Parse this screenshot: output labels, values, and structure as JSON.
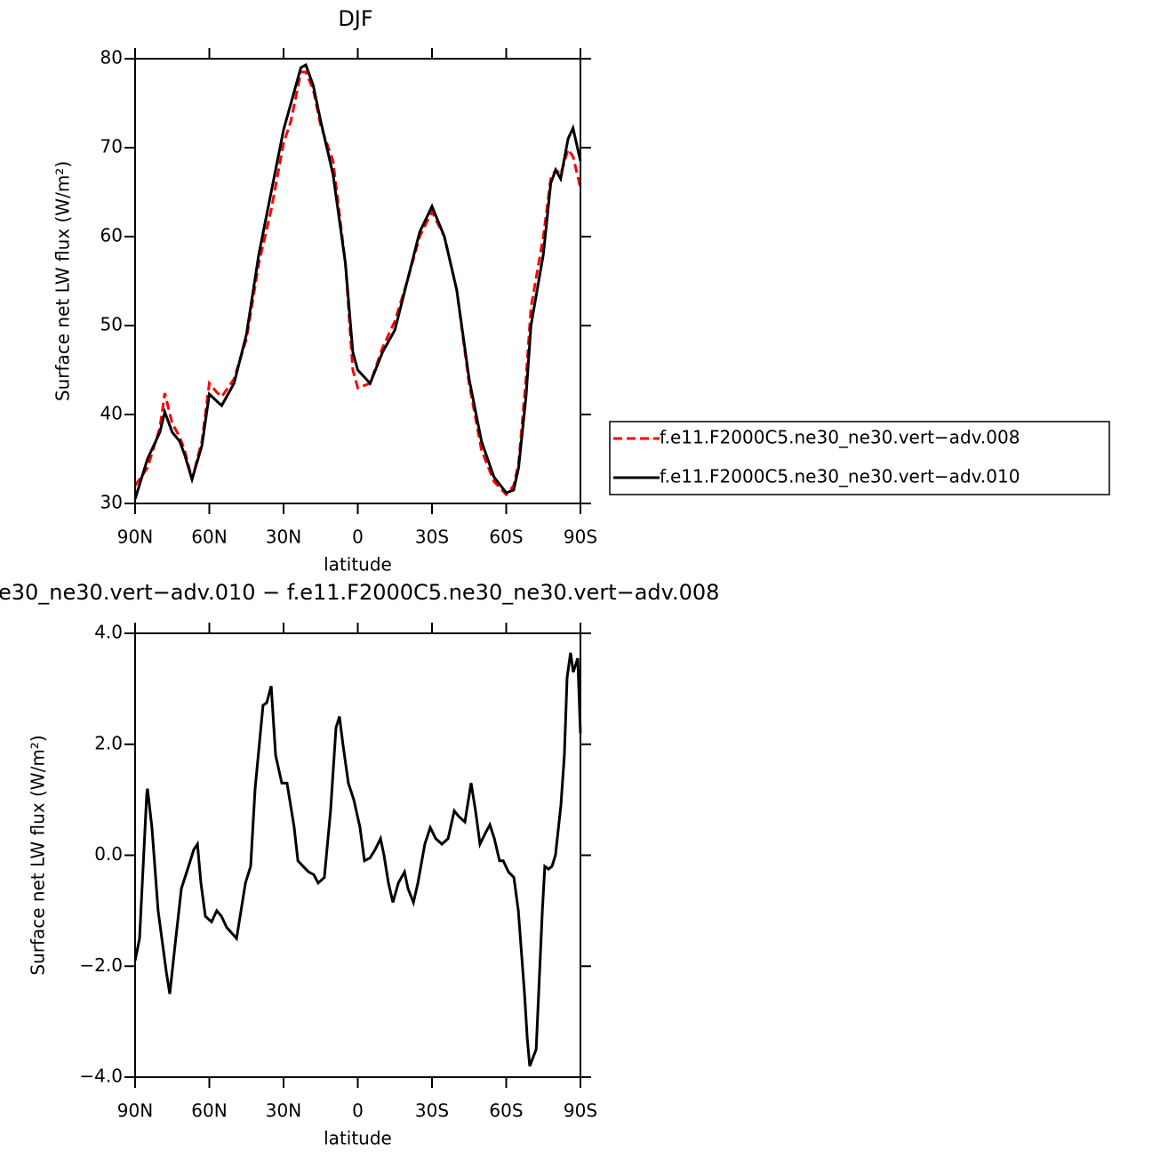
{
  "chart_data": [
    {
      "type": "line",
      "title": "DJF",
      "xlabel": "latitude",
      "ylabel": "Surface net LW flux (W/m²)",
      "x": [
        90,
        85,
        80,
        78,
        75,
        72,
        70,
        67,
        63,
        60,
        57,
        55,
        50,
        45,
        40,
        35,
        30,
        27,
        23,
        21,
        18,
        15,
        10,
        5,
        2,
        0,
        -5,
        -10,
        -15,
        -20,
        -25,
        -30,
        -35,
        -40,
        -45,
        -50,
        -55,
        -60,
        -63,
        -65,
        -68,
        -70,
        -75,
        -78,
        -80,
        -82,
        -85,
        -87,
        -90
      ],
      "series": [
        {
          "name": "f.e11.F2000C5.ne30_ne30.vert−adv.008",
          "color": "#ff0000",
          "dash": "dashed",
          "values": [
            32,
            34,
            38.5,
            42.4,
            39,
            37.5,
            36,
            32.7,
            37,
            43.5,
            42.5,
            42,
            44,
            48.5,
            57,
            63,
            70.5,
            73,
            78.5,
            78.5,
            76.5,
            72.5,
            68.5,
            57,
            45,
            43,
            43.5,
            47.5,
            50.5,
            55,
            60,
            62.8,
            60,
            54,
            43.5,
            36,
            32.5,
            31,
            32,
            34.5,
            44,
            52,
            60,
            66.5,
            67.5,
            67,
            69.8,
            69,
            65.5
          ]
        },
        {
          "name": "f.e11.F2000C5.ne30_ne30.vert−adv.010",
          "color": "#000000",
          "dash": "solid",
          "values": [
            30.5,
            35,
            38,
            40.3,
            38,
            37,
            35.5,
            32.7,
            36.5,
            42.3,
            41.5,
            41,
            43.5,
            49,
            58,
            65,
            72,
            75,
            79,
            79.3,
            77,
            73,
            67,
            57,
            47,
            45,
            43.5,
            47,
            49.5,
            55,
            60.5,
            63.4,
            60,
            54,
            44,
            37,
            33,
            31.2,
            31.5,
            34,
            42,
            50,
            58,
            66,
            67.5,
            66.5,
            71,
            72.2,
            68.5
          ]
        }
      ],
      "xlim": [
        90,
        -90
      ],
      "xticks": [
        {
          "value": 90,
          "label": "90N"
        },
        {
          "value": 60,
          "label": "60N"
        },
        {
          "value": 30,
          "label": "30N"
        },
        0,
        {
          "value": -30,
          "label": "30S"
        },
        {
          "value": -60,
          "label": "60S"
        },
        {
          "value": -90,
          "label": "90S"
        }
      ],
      "ylim": [
        30,
        80
      ],
      "yticks": [
        30,
        40,
        50,
        60,
        70,
        80
      ],
      "legend": "right"
    },
    {
      "type": "line",
      "title": "e30_ne30.vert−adv.010 − f.e11.F2000C5.ne30_ne30.vert−adv.008",
      "xlabel": "latitude",
      "ylabel": "Surface net LW flux (W/m²)",
      "x": [
        90,
        88.2,
        85.3,
        85,
        83.2,
        80.7,
        77.4,
        76,
        73.8,
        71.3,
        68.4,
        66.3,
        64.8,
        63.4,
        61.6,
        59.1,
        57,
        55.1,
        53,
        49,
        45.4,
        43.3,
        41.5,
        38.3,
        36.8,
        35,
        33.2,
        30.7,
        28.6,
        25.7,
        24.2,
        22.1,
        19.9,
        17.8,
        16,
        13.5,
        11,
        8.8,
        7.4,
        6,
        3.8,
        1.6,
        -0.9,
        -2.7,
        -4.9,
        -7,
        -9.2,
        -10.6,
        -12.4,
        -14.2,
        -16.4,
        -18.9,
        -20.3,
        -22.5,
        -24.3,
        -27.1,
        -29.3,
        -31.5,
        -34,
        -36.5,
        -39,
        -40.8,
        -43.3,
        -45.8,
        -47.6,
        -49.4,
        -51.6,
        -53.4,
        -55.2,
        -57.3,
        -58.8,
        -60.9,
        -63.1,
        -64.9,
        -67.4,
        -68.5,
        -69.5,
        -72.1,
        -74.6,
        -75.6,
        -77.1,
        -78.5,
        -79.9,
        -82.1,
        -83.5,
        -84.6,
        -86,
        -87.1,
        -88.9,
        -90
      ],
      "series": [
        {
          "color": "#000000",
          "dash": "solid",
          "values": [
            -1.9,
            -1.5,
            1.1,
            1.2,
            0.5,
            -1.0,
            -2.1,
            -2.5,
            -1.6,
            -0.6,
            -0.2,
            0.1,
            0.2,
            -0.5,
            -1.1,
            -1.2,
            -1.0,
            -1.1,
            -1.3,
            -1.5,
            -0.5,
            -0.2,
            1.2,
            2.7,
            2.75,
            3.05,
            1.8,
            1.3,
            1.3,
            0.5,
            -0.1,
            -0.2,
            -0.3,
            -0.35,
            -0.5,
            -0.4,
            0.8,
            2.3,
            2.5,
            2.0,
            1.3,
            1.0,
            0.5,
            -0.1,
            -0.05,
            0.1,
            0.3,
            0.0,
            -0.5,
            -0.85,
            -0.5,
            -0.3,
            -0.6,
            -0.85,
            -0.5,
            0.2,
            0.5,
            0.3,
            0.2,
            0.3,
            0.8,
            0.7,
            0.6,
            1.3,
            0.8,
            0.2,
            0.4,
            0.55,
            0.3,
            -0.1,
            -0.1,
            -0.3,
            -0.4,
            -1.0,
            -2.5,
            -3.3,
            -3.8,
            -3.5,
            -1.0,
            -0.2,
            -0.25,
            -0.2,
            0.0,
            0.9,
            1.8,
            3.2,
            3.65,
            3.3,
            3.55,
            2.2
          ]
        }
      ],
      "xlim": [
        90,
        -90
      ],
      "xticks": [
        {
          "value": 90,
          "label": "90N"
        },
        {
          "value": 60,
          "label": "60N"
        },
        {
          "value": 30,
          "label": "30N"
        },
        0,
        {
          "value": -30,
          "label": "30S"
        },
        {
          "value": -60,
          "label": "60S"
        },
        {
          "value": -90,
          "label": "90S"
        }
      ],
      "ylim": [
        -4,
        4
      ],
      "yticks": [
        {
          "value": -4,
          "label": "−4.0"
        },
        {
          "value": -2,
          "label": "−2.0"
        },
        {
          "value": 0,
          "label": "0.0"
        },
        {
          "value": 2,
          "label": "2.0"
        },
        {
          "value": 4,
          "label": "4.0"
        }
      ]
    }
  ]
}
